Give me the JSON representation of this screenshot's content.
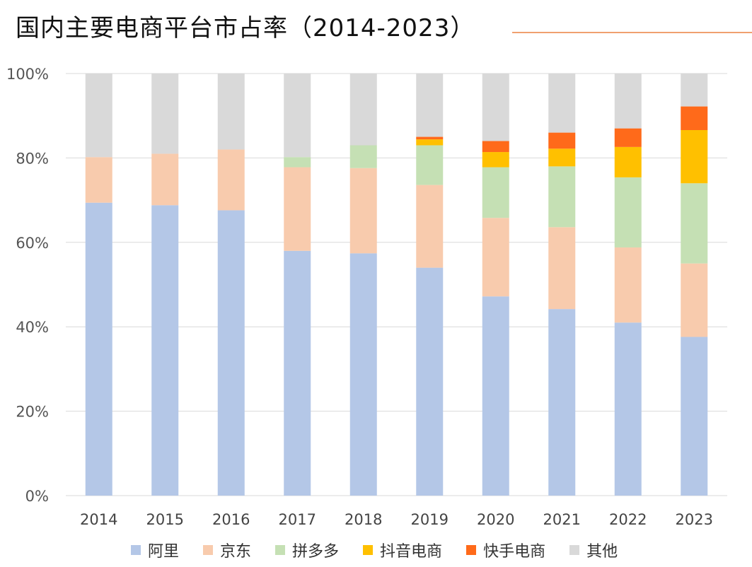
{
  "title": "国内主要电商平台市占率（2014-2023）",
  "chart_data": {
    "type": "bar",
    "stacked": true,
    "title": "国内主要电商平台市占率（2014-2023）",
    "xlabel": "",
    "ylabel": "",
    "ylim": [
      0,
      100
    ],
    "yticks": [
      "0%",
      "20%",
      "40%",
      "60%",
      "80%",
      "100%"
    ],
    "grid": true,
    "legend_position": "bottom",
    "categories": [
      "2014",
      "2015",
      "2016",
      "2017",
      "2018",
      "2019",
      "2020",
      "2021",
      "2022",
      "2023"
    ],
    "series": [
      {
        "name": "阿里",
        "color": "#b4c7e7",
        "values": [
          69.4,
          68.8,
          67.6,
          58.0,
          57.4,
          54.0,
          47.2,
          44.2,
          41.0,
          37.6
        ]
      },
      {
        "name": "京东",
        "color": "#f8cbad",
        "values": [
          10.8,
          12.2,
          14.4,
          19.8,
          20.2,
          19.6,
          18.6,
          19.4,
          17.8,
          17.4
        ]
      },
      {
        "name": "拼多多",
        "color": "#c5e0b4",
        "values": [
          0,
          0,
          0,
          2.4,
          5.4,
          9.4,
          12.0,
          14.4,
          16.6,
          19.0
        ]
      },
      {
        "name": "抖音电商",
        "color": "#ffc000",
        "values": [
          0,
          0,
          0,
          0,
          0,
          1.4,
          3.6,
          4.2,
          7.2,
          12.6
        ]
      },
      {
        "name": "快手电商",
        "color": "#ff6a1a",
        "values": [
          0,
          0,
          0,
          0,
          0,
          0.6,
          2.6,
          3.8,
          4.4,
          5.6
        ]
      },
      {
        "name": "其他",
        "color": "#d9d9d9",
        "values": [
          19.8,
          19.0,
          18.0,
          19.8,
          17.0,
          15.0,
          16.0,
          14.0,
          13.0,
          7.8
        ]
      }
    ]
  }
}
